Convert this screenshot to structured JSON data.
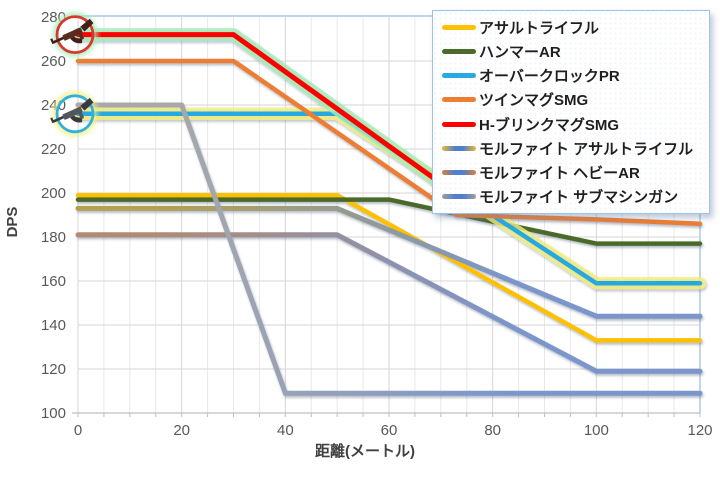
{
  "axes": {
    "x": {
      "title": "距離(メートル)",
      "ticks": [
        "0",
        "20",
        "40",
        "60",
        "80",
        "100",
        "120"
      ]
    },
    "y": {
      "title": "DPS",
      "ticks": [
        "280",
        "260",
        "240",
        "220",
        "200",
        "180",
        "160",
        "140",
        "120",
        "100"
      ]
    }
  },
  "legend": {
    "items": [
      {
        "label": "アサルトライフル",
        "colors": [
          "#FFC000"
        ]
      },
      {
        "label": "ハンマーAR",
        "colors": [
          "#4C6A29"
        ]
      },
      {
        "label": "オーバークロックPR",
        "colors": [
          "#28A9E1"
        ]
      },
      {
        "label": "ツインマグSMG",
        "colors": [
          "#ED7D31"
        ]
      },
      {
        "label": "H-ブリンクマグSMG",
        "colors": [
          "#FF0000"
        ]
      },
      {
        "label": "モルファイト アサルトライフル",
        "colors": [
          "#DDB63C",
          "#4F7FD1"
        ]
      },
      {
        "label": "モルファイト ヘビーAR",
        "colors": [
          "#D07F3C",
          "#4F7FD1"
        ]
      },
      {
        "label": "モルファイト サブマシンガン",
        "colors": [
          "#9B9B9B",
          "#4F7FD1"
        ]
      }
    ]
  },
  "chart_data": {
    "type": "line",
    "title": "",
    "xlabel": "距離(メートル)",
    "ylabel": "DPS",
    "xlim": [
      0,
      120
    ],
    "ylim": [
      100,
      280
    ],
    "x_gridline_step": 5,
    "y_gridline_step": 20,
    "grid": "on",
    "legend_position": "top-right",
    "series": [
      {
        "key": "assault_rifle",
        "name": "アサルトライフル",
        "color": "#FFC000",
        "width": 4.5,
        "points": [
          [
            0,
            199
          ],
          [
            50,
            199
          ],
          [
            100,
            133
          ],
          [
            120,
            133
          ]
        ]
      },
      {
        "key": "hammer_ar",
        "name": "ハンマーAR",
        "color": "#4C6A29",
        "width": 4.5,
        "points": [
          [
            0,
            197
          ],
          [
            60,
            197
          ],
          [
            100,
            177
          ],
          [
            120,
            177
          ]
        ]
      },
      {
        "key": "overclock_pr",
        "name": "オーバークロックPR",
        "color": "#28A9E1",
        "width": 4.5,
        "glow": "#F4EE7D",
        "points": [
          [
            0,
            236
          ],
          [
            50,
            236
          ],
          [
            100,
            159
          ],
          [
            120,
            159
          ]
        ]
      },
      {
        "key": "twinmag_smg",
        "name": "ツインマグSMG",
        "color": "#ED7D31",
        "width": 4.5,
        "points": [
          [
            0,
            260
          ],
          [
            30,
            260
          ],
          [
            73,
            190
          ],
          [
            100,
            188
          ],
          [
            120,
            186
          ]
        ]
      },
      {
        "key": "h_blinkmag_smg",
        "name": "H-ブリンクマグSMG",
        "color": "#FF0000",
        "width": 5,
        "glow": "#A5ECB8",
        "points": [
          [
            0,
            272
          ],
          [
            30,
            272
          ],
          [
            75,
            196
          ],
          [
            120,
            196
          ]
        ]
      },
      {
        "key": "morphite_assault_rifle",
        "name": "モルファイト アサルトライフル",
        "color": "#B3A14E",
        "color2": "#7B96CB",
        "width": 5,
        "points": [
          [
            0,
            193
          ],
          [
            50,
            193
          ],
          [
            100,
            144
          ],
          [
            120,
            144
          ]
        ]
      },
      {
        "key": "morphite_heavy_ar",
        "name": "モルファイト ヘビーAR",
        "color": "#B18A72",
        "color2": "#7B96CB",
        "width": 5,
        "points": [
          [
            0,
            181
          ],
          [
            50,
            181
          ],
          [
            100,
            119
          ],
          [
            120,
            119
          ]
        ]
      },
      {
        "key": "morphite_submachine_gun",
        "name": "モルファイト サブマシンガン",
        "color": "#A9A9A9",
        "color2": "#7B96CB",
        "width": 5,
        "points": [
          [
            0,
            240
          ],
          [
            20,
            240
          ],
          [
            40,
            109
          ],
          [
            120,
            109
          ]
        ]
      }
    ],
    "highlight_markers": [
      {
        "series": "h_blinkmag_smg",
        "at_x": 0,
        "at_y": 272,
        "ring_color": "#D43B2D",
        "glow_color": "#A8ECB9",
        "gun_dark": "#41201A",
        "gun_mid": "#5A2A1E"
      },
      {
        "series": "overclock_pr",
        "at_x": 0,
        "at_y": 236,
        "ring_color": "#30B2DC",
        "glow_color": "#F4EE7D",
        "gun_dark": "#3A3A3E",
        "gun_mid": "#55555C"
      }
    ]
  },
  "style_colors": {
    "gridline_minor": "#e8e8e8",
    "gridline_major": "#d6d6d6",
    "axis_line": "#bfbfbf",
    "plot_border_accent": "#A9C6E8"
  }
}
